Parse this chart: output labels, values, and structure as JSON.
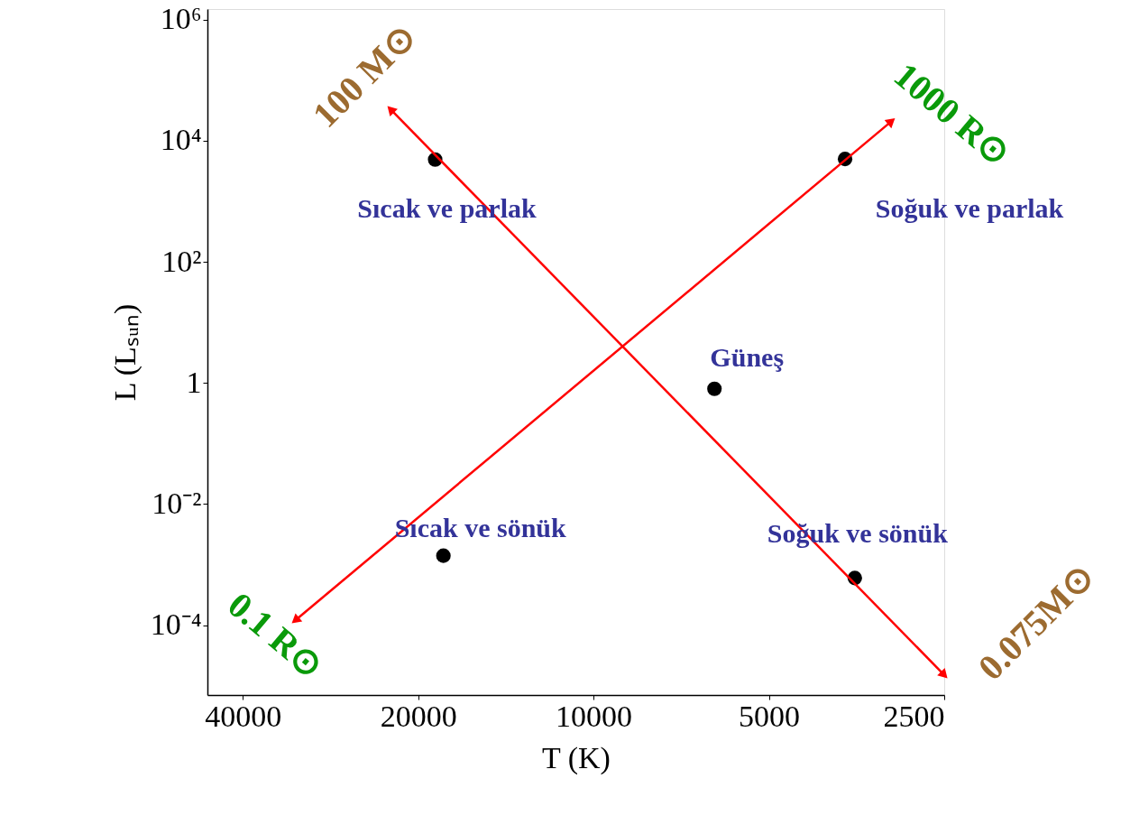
{
  "chart_data": {
    "type": "scatter",
    "xlabel": "T (K)",
    "ylabel": "L (Lₛᵤₙ)",
    "log": "xy",
    "grid": false,
    "xlim": [
      46000,
      2500
    ],
    "xticks": [
      40000,
      20000,
      10000,
      5000,
      2500
    ],
    "ylim": [
      7e-06,
      1500000.0
    ],
    "yticks": [
      {
        "value": 1000000,
        "label": "10⁶"
      },
      {
        "value": 10000,
        "label": "10⁴"
      },
      {
        "value": 100,
        "label": "10²"
      },
      1,
      {
        "value": 0.01,
        "label": "10⁻²"
      },
      {
        "value": 0.0001,
        "label": "10⁻⁴"
      }
    ],
    "series": [
      {
        "marker": "circle",
        "color": "#000000",
        "x": [
          18700,
          3700,
          6200,
          18100,
          3560
        ],
        "values": [
          4900,
          5000,
          0.8,
          0.0014,
          0.0006
        ]
      },
      {
        "type": "line",
        "marker": "triangle",
        "color": "#ff0000",
        "x": [
          22300,
          2500
        ],
        "values": [
          33000,
          1.5e-05
        ]
      },
      {
        "type": "line",
        "marker": "triangle",
        "color": "#ff0000",
        "x": [
          32500,
          3080
        ],
        "values": [
          0.00012,
          21000
        ]
      }
    ],
    "annotations": [
      {
        "text": "Sıcak  ve parlak",
        "x": 18700,
        "y": 4900
      },
      {
        "text": "Soğuk  ve parlak",
        "x": 3700,
        "y": 5000
      },
      {
        "text": "Güneş",
        "x": 6200,
        "y": 0.8
      },
      {
        "text": "Sıcak ve sönük",
        "x": 18100,
        "y": 0.0014
      },
      {
        "text": "Soğuk  ve sönük",
        "x": 3560,
        "y": 0.0006
      },
      "100 M⊙",
      "1000 R⊙",
      "0.1 R⊙",
      "0.075M⊙"
    ]
  }
}
